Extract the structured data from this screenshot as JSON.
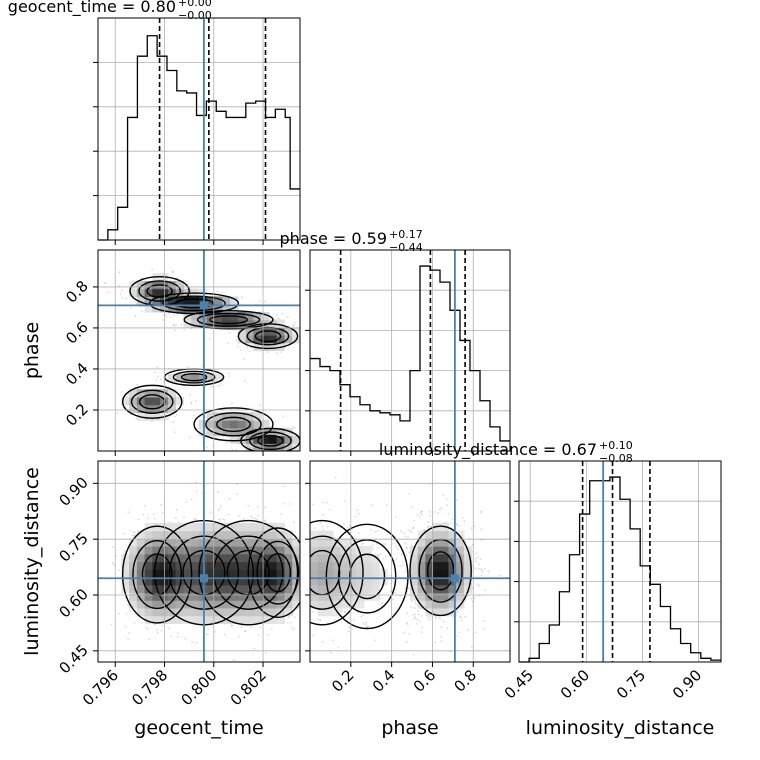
{
  "chart_data": {
    "type": "corner",
    "parameters": [
      {
        "name": "geocent_time",
        "title_name": "geocent_time",
        "median": "0.80",
        "err_plus": "+0.00",
        "err_minus": "−0.00",
        "truth": 0.7996,
        "quantiles": [
          0.7978,
          0.7998,
          0.8021
        ],
        "range": [
          0.7953,
          0.8035
        ],
        "ticks": [
          0.796,
          0.798,
          0.8,
          0.802
        ],
        "tick_labels": [
          "0.796",
          "0.798",
          "0.800",
          "0.802"
        ],
        "hist_edges": [
          0.7953,
          0.7957,
          0.7961,
          0.7965,
          0.7969,
          0.7973,
          0.7977,
          0.7981,
          0.7985,
          0.7989,
          0.7993,
          0.7997,
          0.8001,
          0.8005,
          0.8009,
          0.8013,
          0.8017,
          0.8021,
          0.8025,
          0.8029,
          0.8031,
          0.8035
        ],
        "hist_counts": [
          0,
          5,
          16,
          60,
          90,
          100,
          90,
          83,
          73,
          72,
          61,
          68,
          63,
          60,
          60,
          67,
          68,
          60,
          64,
          60,
          25
        ]
      },
      {
        "name": "phase",
        "title_name": "phase",
        "median": "0.59",
        "err_plus": "+0.17",
        "err_minus": "−0.44",
        "truth": 0.71,
        "quantiles": [
          0.15,
          0.59,
          0.76
        ],
        "range": [
          0.0,
          0.98
        ],
        "ticks": [
          0.2,
          0.4,
          0.6,
          0.8
        ],
        "tick_labels": [
          "0.2",
          "0.4",
          "0.6",
          "0.8"
        ],
        "hist_edges": [
          0.0,
          0.049,
          0.098,
          0.147,
          0.196,
          0.245,
          0.294,
          0.343,
          0.392,
          0.441,
          0.49,
          0.539,
          0.588,
          0.637,
          0.686,
          0.735,
          0.784,
          0.833,
          0.882,
          0.931,
          0.98
        ],
        "hist_counts": [
          46,
          42,
          40,
          33,
          27,
          23,
          20,
          19,
          18,
          15,
          40,
          92,
          90,
          84,
          70,
          55,
          40,
          25,
          12,
          5
        ]
      },
      {
        "name": "luminosity_distance",
        "title_name": "luminosity_distance",
        "median": "0.67",
        "err_plus": "+0.10",
        "err_minus": "−0.08",
        "truth": 0.645,
        "quantiles": [
          0.59,
          0.67,
          0.77
        ],
        "range": [
          0.42,
          0.96
        ],
        "ticks": [
          0.45,
          0.6,
          0.75,
          0.9
        ],
        "tick_labels": [
          "0.45",
          "0.60",
          "0.75",
          "0.90"
        ],
        "hist_edges": [
          0.42,
          0.447,
          0.474,
          0.501,
          0.528,
          0.555,
          0.582,
          0.609,
          0.636,
          0.663,
          0.69,
          0.717,
          0.744,
          0.771,
          0.798,
          0.825,
          0.852,
          0.879,
          0.906,
          0.933,
          0.96
        ],
        "hist_counts": [
          0,
          2,
          10,
          20,
          38,
          58,
          80,
          98,
          98,
          100,
          88,
          72,
          52,
          42,
          30,
          18,
          10,
          5,
          2,
          1
        ]
      }
    ],
    "density_maps": [
      {
        "x": "geocent_time",
        "y": "phase",
        "peaks": [
          {
            "cx": 0.7978,
            "cy": 0.78,
            "sx": 0.0006,
            "sy": 0.035,
            "w": 0.8
          },
          {
            "cx": 0.7992,
            "cy": 0.72,
            "sx": 0.0009,
            "sy": 0.025,
            "w": 1.0
          },
          {
            "cx": 0.8006,
            "cy": 0.64,
            "sx": 0.0009,
            "sy": 0.022,
            "w": 1.0
          },
          {
            "cx": 0.8022,
            "cy": 0.56,
            "sx": 0.0006,
            "sy": 0.03,
            "w": 0.9
          },
          {
            "cx": 0.7975,
            "cy": 0.24,
            "sx": 0.0006,
            "sy": 0.04,
            "w": 0.7
          },
          {
            "cx": 0.7992,
            "cy": 0.36,
            "sx": 0.0006,
            "sy": 0.02,
            "w": 0.45
          },
          {
            "cx": 0.8008,
            "cy": 0.13,
            "sx": 0.0008,
            "sy": 0.04,
            "w": 0.55
          },
          {
            "cx": 0.8023,
            "cy": 0.05,
            "sx": 0.0006,
            "sy": 0.03,
            "w": 0.9
          }
        ]
      },
      {
        "x": "geocent_time",
        "y": "luminosity_distance",
        "peaks": [
          {
            "cx": 0.7977,
            "cy": 0.655,
            "sx": 0.0007,
            "sy": 0.065,
            "w": 1.0
          },
          {
            "cx": 0.7996,
            "cy": 0.66,
            "sx": 0.001,
            "sy": 0.07,
            "w": 0.8
          },
          {
            "cx": 0.8014,
            "cy": 0.66,
            "sx": 0.001,
            "sy": 0.07,
            "w": 0.75
          },
          {
            "cx": 0.8026,
            "cy": 0.66,
            "sx": 0.0006,
            "sy": 0.06,
            "w": 0.7
          }
        ]
      },
      {
        "x": "phase",
        "y": "luminosity_distance",
        "peaks": [
          {
            "cx": 0.64,
            "cy": 0.665,
            "sx": 0.075,
            "sy": 0.06,
            "w": 1.0
          },
          {
            "cx": 0.06,
            "cy": 0.66,
            "sx": 0.1,
            "sy": 0.07,
            "w": 0.38
          },
          {
            "cx": 0.28,
            "cy": 0.65,
            "sx": 0.1,
            "sy": 0.07,
            "w": 0.16
          }
        ]
      }
    ],
    "colors": {
      "histogram": "#000000",
      "truth": "#4682b4",
      "quantile": "#000000",
      "grid": "#b0b0b0",
      "scatter": "#999999"
    },
    "grid": true
  }
}
